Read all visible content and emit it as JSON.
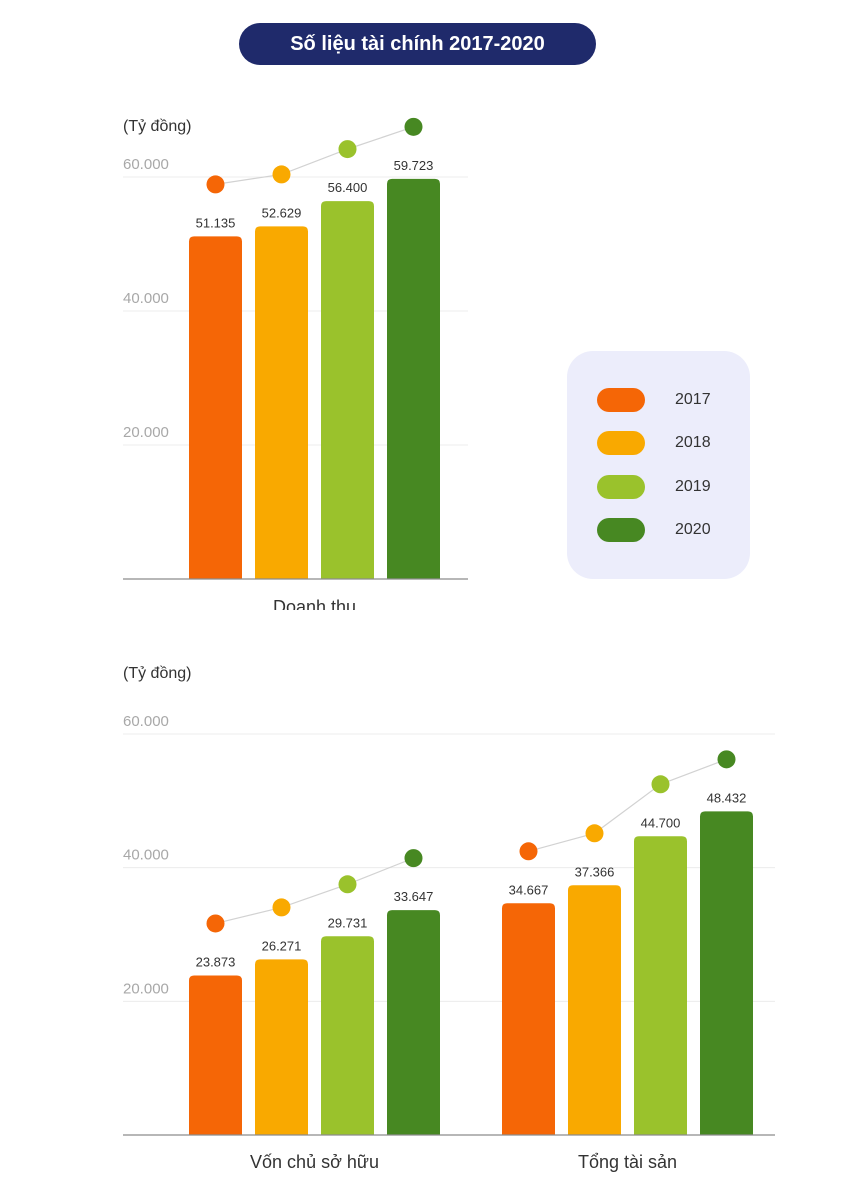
{
  "title": "Số liệu tài chính 2017-2020",
  "legend": [
    {
      "label": "2017",
      "color": "#f56606"
    },
    {
      "label": "2018",
      "color": "#f9a900"
    },
    {
      "label": "2019",
      "color": "#9ac22c"
    },
    {
      "label": "2020",
      "color": "#478822"
    }
  ],
  "chart_data": [
    {
      "type": "bar",
      "unit_label": "(Tỷ đồng)",
      "categories": [
        "Doanh thu"
      ],
      "series": [
        {
          "name": "2017",
          "values": [
            51135
          ],
          "labels": [
            "51.135"
          ]
        },
        {
          "name": "2018",
          "values": [
            52629
          ],
          "labels": [
            "52.629"
          ]
        },
        {
          "name": "2019",
          "values": [
            56400
          ],
          "labels": [
            "56.400"
          ]
        },
        {
          "name": "2020",
          "values": [
            59723
          ],
          "labels": [
            "59.723"
          ]
        }
      ],
      "ylim": [
        0,
        60000
      ],
      "yticks": [
        20000,
        40000,
        60000
      ],
      "ytick_labels": [
        "20.000",
        "40.000",
        "60.000"
      ],
      "grid": true,
      "trend_dots": true
    },
    {
      "type": "bar",
      "unit_label": "(Tỷ đồng)",
      "categories": [
        "Vốn chủ sở hữu",
        "Tổng tài sản"
      ],
      "series": [
        {
          "name": "2017",
          "values": [
            23873,
            34667
          ],
          "labels": [
            "23.873",
            "34.667"
          ]
        },
        {
          "name": "2018",
          "values": [
            26271,
            37366
          ],
          "labels": [
            "26.271",
            "37.366"
          ]
        },
        {
          "name": "2019",
          "values": [
            29731,
            44700
          ],
          "labels": [
            "29.731",
            "44.700"
          ]
        },
        {
          "name": "2020",
          "values": [
            33647,
            48432
          ],
          "labels": [
            "33.647",
            "48.432"
          ]
        }
      ],
      "ylim": [
        0,
        60000
      ],
      "yticks": [
        20000,
        40000,
        60000
      ],
      "ytick_labels": [
        "20.000",
        "40.000",
        "60.000"
      ],
      "grid": true,
      "trend_dots": true
    }
  ]
}
